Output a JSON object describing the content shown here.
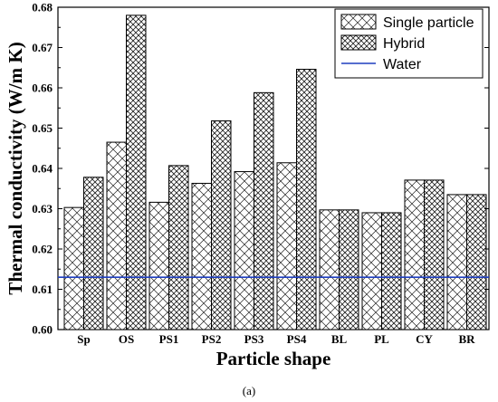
{
  "chart_data": {
    "type": "bar",
    "xlabel": "Particle shape",
    "ylabel": "Thermal conductivity (W/m K)",
    "categories": [
      "Sp",
      "OS",
      "PS1",
      "PS2",
      "PS3",
      "PS4",
      "BL",
      "PL",
      "CY",
      "BR"
    ],
    "series": [
      {
        "name": "Single particle",
        "values": [
          0.6303,
          0.6465,
          0.6316,
          0.6363,
          0.6392,
          0.6414,
          0.6297,
          0.629,
          0.6371,
          0.6335
        ]
      },
      {
        "name": "Hybrid",
        "values": [
          0.6378,
          0.678,
          0.6407,
          0.6518,
          0.6588,
          0.6646,
          0.6297,
          0.629,
          0.6371,
          0.6335
        ]
      }
    ],
    "reference_lines": [
      {
        "name": "Water",
        "value": 0.613,
        "color": "#1f3fbf"
      }
    ],
    "ylim": [
      0.6,
      0.68
    ],
    "yticks": [
      "0.60",
      "0.61",
      "0.62",
      "0.63",
      "0.64",
      "0.65",
      "0.66",
      "0.67",
      "0.68"
    ],
    "grid": false,
    "legend_position": "top-right",
    "patterns": {
      "single": "hatch-sparse",
      "hybrid": "crosshatch-dense"
    }
  },
  "caption": "(a)"
}
